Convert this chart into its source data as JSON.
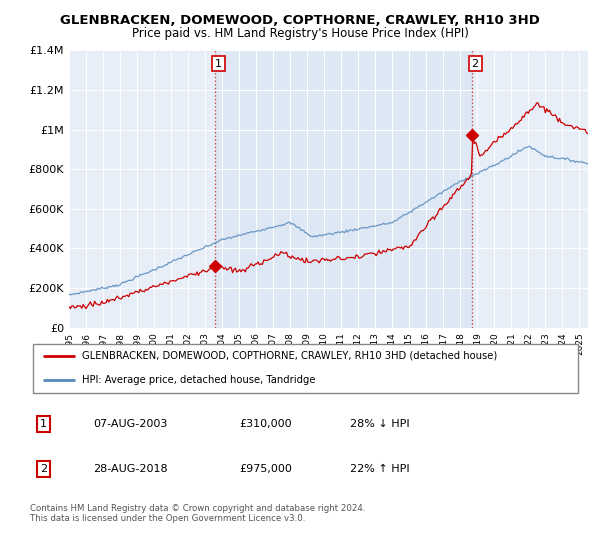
{
  "title": "GLENBRACKEN, DOMEWOOD, COPTHORNE, CRAWLEY, RH10 3HD",
  "subtitle": "Price paid vs. HM Land Registry's House Price Index (HPI)",
  "legend_line1": "GLENBRACKEN, DOMEWOOD, COPTHORNE, CRAWLEY, RH10 3HD (detached house)",
  "legend_line2": "HPI: Average price, detached house, Tandridge",
  "annotation1_label": "1",
  "annotation1_date": "07-AUG-2003",
  "annotation1_price": "£310,000",
  "annotation1_hpi": "28% ↓ HPI",
  "annotation2_label": "2",
  "annotation2_date": "28-AUG-2018",
  "annotation2_price": "£975,000",
  "annotation2_hpi": "22% ↑ HPI",
  "footnote": "Contains HM Land Registry data © Crown copyright and database right 2024.\nThis data is licensed under the Open Government Licence v3.0.",
  "sale1_x": 2003.58,
  "sale1_y": 310000,
  "sale2_x": 2018.66,
  "sale2_y": 975000,
  "red_color": "#cc0000",
  "blue_color": "#5588bb",
  "shade_color": "#dde8f5",
  "dashed_vline_color": "#cc4444",
  "background_color": "#e8eef8",
  "plot_bg": "#e8eef8",
  "ylim": [
    0,
    1400000
  ],
  "xlim": [
    1995.0,
    2025.5
  ],
  "yticks": [
    0,
    200000,
    400000,
    600000,
    800000,
    1000000,
    1200000,
    1400000
  ],
  "ytick_labels": [
    "£0",
    "£200K",
    "£400K",
    "£600K",
    "£800K",
    "£1M",
    "£1.2M",
    "£1.4M"
  ],
  "xticks": [
    1995,
    1996,
    1997,
    1998,
    1999,
    2000,
    2001,
    2002,
    2003,
    2004,
    2005,
    2006,
    2007,
    2008,
    2009,
    2010,
    2011,
    2012,
    2013,
    2014,
    2015,
    2016,
    2017,
    2018,
    2019,
    2020,
    2021,
    2022,
    2023,
    2024,
    2025
  ]
}
